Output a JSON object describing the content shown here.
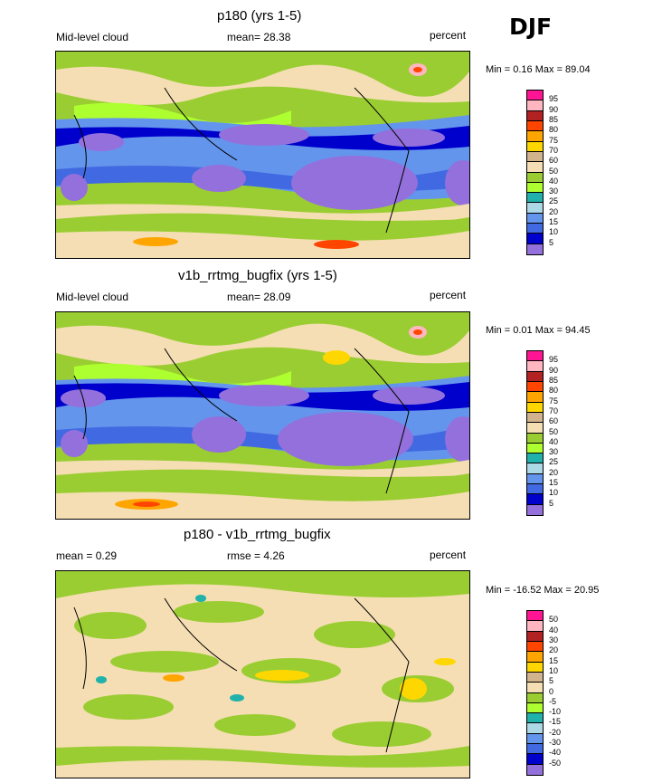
{
  "season": "DJF",
  "panels": [
    {
      "title": "p180 (yrs 1-5)",
      "left_label": "Mid-level cloud",
      "center_label": "mean=  28.38",
      "right_label": "percent",
      "minmax": "Min =   0.16 Max =  89.04",
      "colorbar": {
        "labels": [
          "95",
          "90",
          "85",
          "80",
          "75",
          "70",
          "60",
          "50",
          "40",
          "30",
          "25",
          "20",
          "15",
          "10",
          "5"
        ],
        "colors": [
          "#ff1493",
          "#ffb6c1",
          "#b22222",
          "#ff4500",
          "#ffa500",
          "#ffd700",
          "#d2b48c",
          "#f5deb3",
          "#9acd32",
          "#adff2f",
          "#20b2aa",
          "#add8e6",
          "#6495ed",
          "#4169e1",
          "#0000cd",
          "#9370db"
        ]
      }
    },
    {
      "title": "v1b_rrtmg_bugfix (yrs 1-5)",
      "left_label": "Mid-level cloud",
      "center_label": "mean=  28.09",
      "right_label": "percent",
      "minmax": "Min =   0.01 Max =  94.45",
      "colorbar": {
        "labels": [
          "95",
          "90",
          "85",
          "80",
          "75",
          "70",
          "60",
          "50",
          "40",
          "30",
          "25",
          "20",
          "15",
          "10",
          "5"
        ],
        "colors": [
          "#ff1493",
          "#ffb6c1",
          "#b22222",
          "#ff4500",
          "#ffa500",
          "#ffd700",
          "#d2b48c",
          "#f5deb3",
          "#9acd32",
          "#adff2f",
          "#20b2aa",
          "#add8e6",
          "#6495ed",
          "#4169e1",
          "#0000cd",
          "#9370db"
        ]
      }
    },
    {
      "title": "p180 - v1b_rrtmg_bugfix",
      "left_label": "mean =   0.29",
      "center_label": "rmse =   4.26",
      "right_label": "percent",
      "minmax": "Min = -16.52 Max =  20.95",
      "colorbar": {
        "labels": [
          "50",
          "40",
          "30",
          "20",
          "15",
          "10",
          "5",
          "0",
          "-5",
          "-10",
          "-15",
          "-20",
          "-30",
          "-40",
          "-50"
        ],
        "colors": [
          "#ff1493",
          "#ffb6c1",
          "#b22222",
          "#ff4500",
          "#ffa500",
          "#ffd700",
          "#d2b48c",
          "#f5deb3",
          "#9acd32",
          "#adff2f",
          "#20b2aa",
          "#add8e6",
          "#6495ed",
          "#4169e1",
          "#0000cd",
          "#9370db"
        ]
      }
    }
  ]
}
